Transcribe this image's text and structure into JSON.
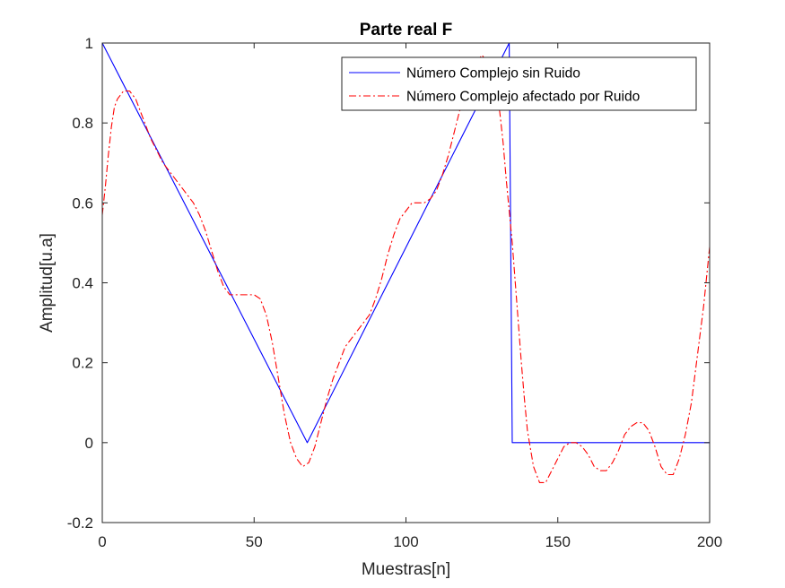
{
  "chart_data": {
    "type": "line",
    "title": "Parte real F",
    "xlabel": "Muestras[n]",
    "ylabel": "Amplitud[u.a]",
    "xlim": [
      0,
      200
    ],
    "ylim": [
      -0.2,
      1
    ],
    "xticks": [
      0,
      50,
      100,
      150,
      200
    ],
    "xtick_labels": [
      "0",
      "50",
      "100",
      "150",
      "200"
    ],
    "yticks": [
      -0.2,
      0,
      0.2,
      0.4,
      0.6,
      0.8,
      1
    ],
    "ytick_labels": [
      "-0.2",
      "0",
      "0.2",
      "0.4",
      "0.6",
      "0.8",
      "1"
    ],
    "grid": false,
    "box": true,
    "legend_position": "top-right",
    "series": [
      {
        "name": "Número Complejo sin Ruido",
        "color": "#0000ff",
        "line_style": "solid",
        "x": [
          0,
          67.5,
          134,
          135,
          200
        ],
        "y": [
          1,
          0,
          1,
          0,
          0
        ]
      },
      {
        "name": "Número Complejo afectado por Ruido",
        "color": "#ff0000",
        "line_style": "dashdot",
        "x": [
          0,
          1,
          2,
          3,
          4,
          5,
          6,
          7,
          8,
          9,
          10,
          11,
          12,
          13,
          14,
          16,
          18,
          20,
          22,
          24,
          26,
          28,
          30,
          32,
          34,
          36,
          38,
          40,
          42,
          44,
          46,
          48,
          50,
          52,
          54,
          56,
          58,
          60,
          62,
          64,
          66,
          68,
          70,
          72,
          74,
          76,
          78,
          80,
          82,
          84,
          86,
          88,
          90,
          92,
          94,
          96,
          98,
          100,
          102,
          104,
          106,
          108,
          110,
          112,
          114,
          116,
          118,
          120,
          122,
          124,
          125,
          126,
          128,
          130,
          131,
          132,
          133,
          134,
          135,
          136,
          137,
          138,
          139,
          140,
          142,
          144,
          146,
          148,
          150,
          152,
          154,
          156,
          158,
          160,
          162,
          164,
          166,
          168,
          170,
          172,
          174,
          176,
          178,
          180,
          182,
          184,
          186,
          188,
          190,
          192,
          194,
          196,
          198,
          200
        ],
        "y": [
          0.57,
          0.64,
          0.72,
          0.79,
          0.84,
          0.86,
          0.87,
          0.88,
          0.88,
          0.88,
          0.87,
          0.86,
          0.84,
          0.82,
          0.8,
          0.76,
          0.73,
          0.7,
          0.68,
          0.66,
          0.64,
          0.62,
          0.6,
          0.57,
          0.53,
          0.48,
          0.43,
          0.39,
          0.37,
          0.37,
          0.37,
          0.37,
          0.37,
          0.36,
          0.32,
          0.25,
          0.16,
          0.07,
          0.0,
          -0.04,
          -0.06,
          -0.05,
          -0.01,
          0.05,
          0.11,
          0.16,
          0.2,
          0.24,
          0.26,
          0.28,
          0.3,
          0.32,
          0.36,
          0.41,
          0.47,
          0.52,
          0.56,
          0.58,
          0.6,
          0.6,
          0.6,
          0.61,
          0.63,
          0.67,
          0.72,
          0.78,
          0.84,
          0.89,
          0.93,
          0.96,
          0.97,
          0.96,
          0.93,
          0.88,
          0.82,
          0.75,
          0.66,
          0.58,
          0.5,
          0.4,
          0.3,
          0.2,
          0.11,
          0.03,
          -0.06,
          -0.1,
          -0.1,
          -0.07,
          -0.04,
          -0.01,
          0.0,
          0.0,
          -0.01,
          -0.03,
          -0.06,
          -0.07,
          -0.07,
          -0.05,
          -0.02,
          0.02,
          0.04,
          0.05,
          0.05,
          0.03,
          -0.01,
          -0.06,
          -0.08,
          -0.08,
          -0.04,
          0.02,
          0.1,
          0.22,
          0.34,
          0.49
        ]
      }
    ]
  }
}
